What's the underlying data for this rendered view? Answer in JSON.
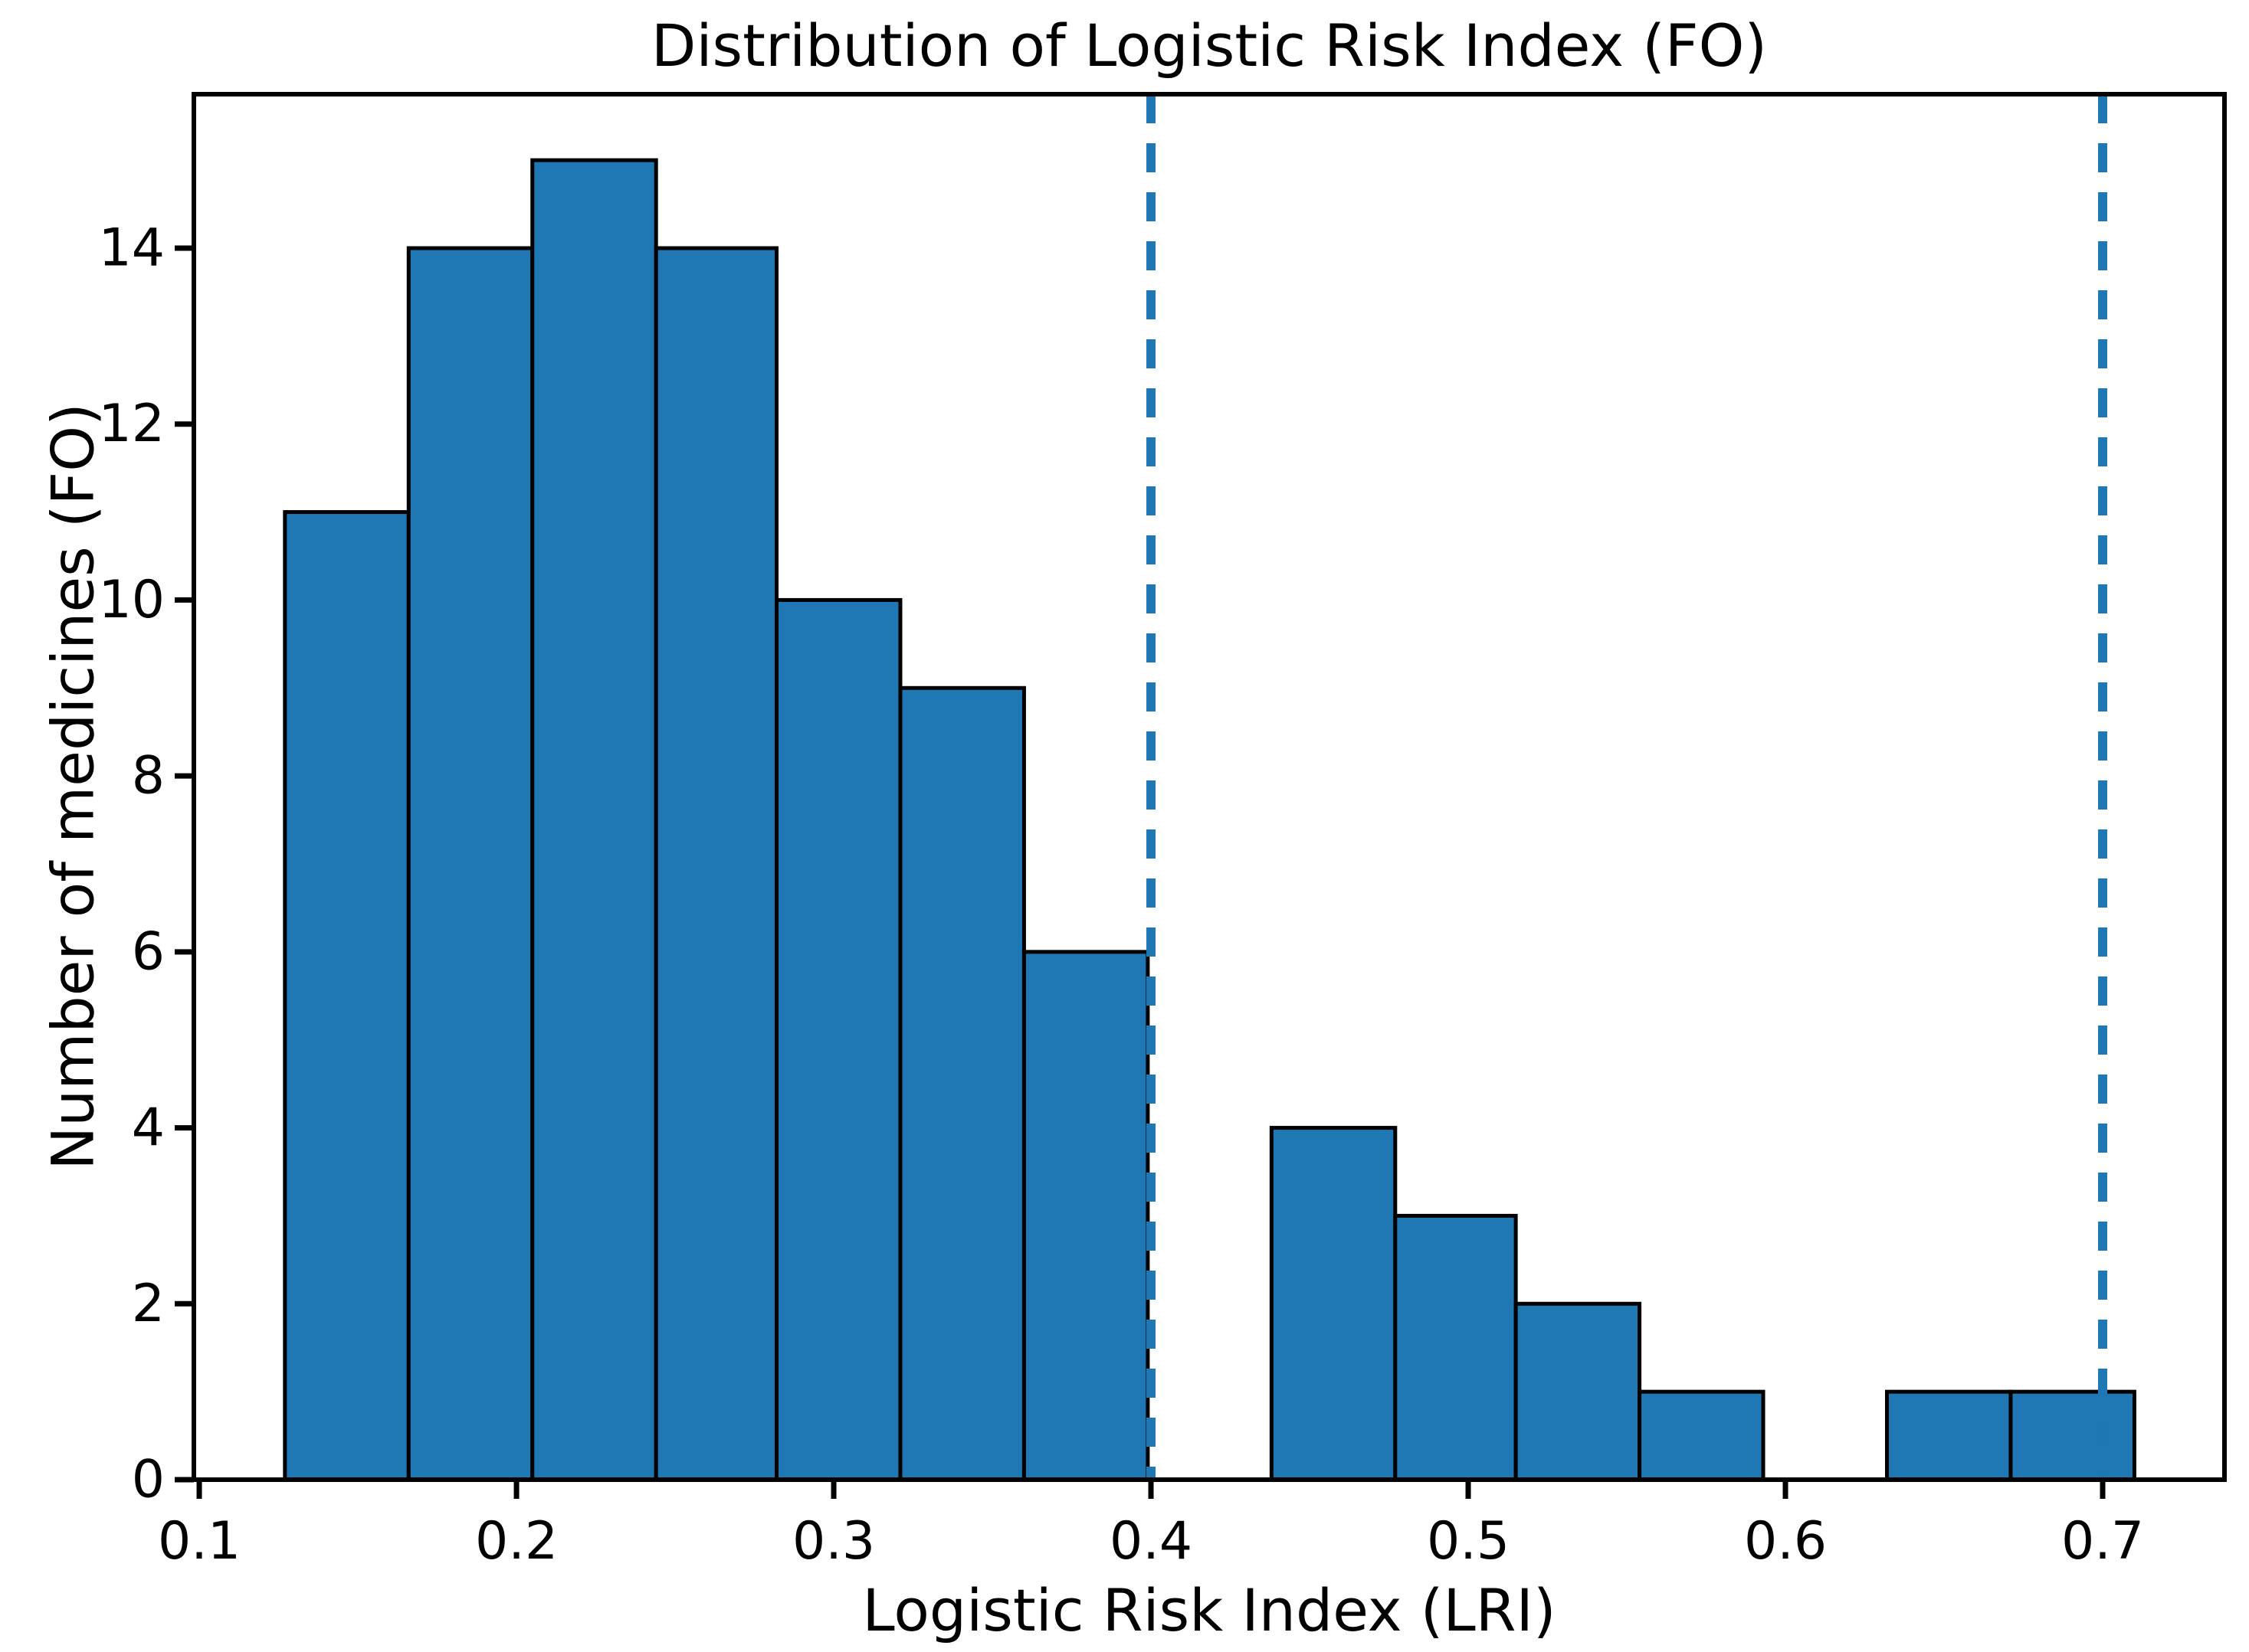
{
  "chart_data": {
    "type": "bar",
    "subtype": "histogram",
    "title": "Distribution of Logistic Risk Index (FO)",
    "xlabel": "Logistic Risk Index (LRI)",
    "ylabel": "Number of medicines (FO)",
    "bin_edges": [
      0.127,
      0.166,
      0.205,
      0.244,
      0.282,
      0.321,
      0.36,
      0.399,
      0.438,
      0.477,
      0.515,
      0.554,
      0.593,
      0.632,
      0.671,
      0.71
    ],
    "counts": [
      11,
      14,
      15,
      14,
      10,
      9,
      6,
      0,
      4,
      3,
      2,
      1,
      0,
      1,
      1
    ],
    "vlines": [
      {
        "x": 0.4,
        "style": "dashed",
        "color": "#1f77b4"
      },
      {
        "x": 0.7,
        "style": "dashed",
        "color": "#1f77b4"
      }
    ],
    "xticks": {
      "values": [
        0.1,
        0.2,
        0.3,
        0.4,
        0.5,
        0.6,
        0.7
      ],
      "labels": [
        "0.1",
        "0.2",
        "0.3",
        "0.4",
        "0.5",
        "0.6",
        "0.7"
      ]
    },
    "yticks": {
      "values": [
        0,
        2,
        4,
        6,
        8,
        10,
        12,
        14
      ],
      "labels": [
        "0",
        "2",
        "4",
        "6",
        "8",
        "10",
        "12",
        "14"
      ]
    },
    "xlim": [
      0.0983,
      0.7384
    ],
    "ylim": [
      0,
      15.75
    ],
    "grid": false,
    "legend": null,
    "colors": {
      "bar_fill": "#1f77b4",
      "bar_edge": "#000000",
      "vline": "#1f77b4",
      "spine": "#000000",
      "text": "#000000",
      "background": "#ffffff"
    }
  }
}
